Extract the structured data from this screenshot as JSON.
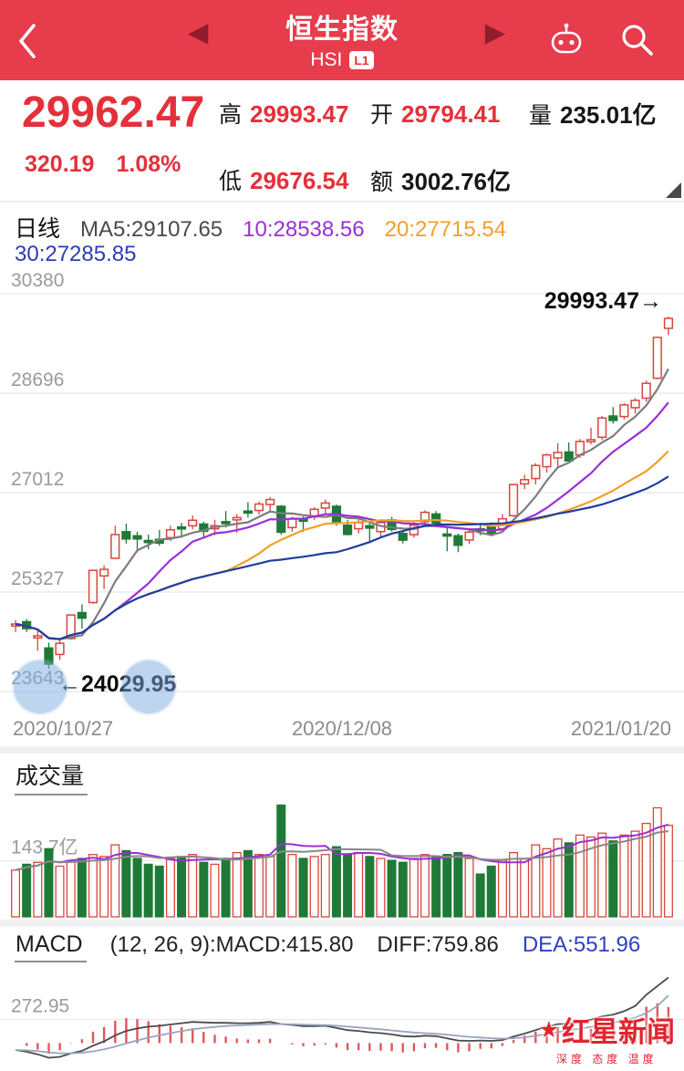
{
  "header": {
    "title": "恒生指数",
    "subtitle": "HSI",
    "badge": "L1",
    "prev_icon": "◀",
    "next_icon": "▶"
  },
  "quote": {
    "price": "29962.47",
    "change": "320.19",
    "change_pct": "1.08%",
    "stats": [
      {
        "label": "高",
        "value": "29993.47"
      },
      {
        "label": "开",
        "value": "29794.41"
      },
      {
        "label": "量",
        "value": "235.01亿"
      },
      {
        "label": "低",
        "value": "29676.54"
      },
      {
        "label": "额",
        "value": "3002.76亿"
      }
    ]
  },
  "indicators": {
    "period": "日线",
    "ma5": "MA5:29107.65",
    "ma10": "10:28538.56",
    "ma20": "20:27715.54",
    "ma30": "30:27285.85"
  },
  "panels": {
    "volume_title": "成交量",
    "macd_title": "MACD",
    "macd_params": "(12, 26, 9):MACD:415.80",
    "macd_diff": "DIFF:759.86",
    "macd_dea": "DEA:551.96"
  },
  "watermark": {
    "star": "★",
    "name": "红星新闻",
    "slogan": "深度 态度 温度"
  },
  "colors": {
    "header_red": "#e63c4c",
    "price_red": "#e5303a",
    "up": "#d8453e",
    "down": "#1e7a36",
    "ma5": "#7d7d7d",
    "ma10": "#9b2fd6",
    "ma20": "#f0a128",
    "ma30": "#1f3da0",
    "vol_ma5": "#9b2fd6",
    "vol_ma10": "#888888",
    "macd_hist": "#e0575c",
    "macd_diff_line": "#4a4a4a",
    "macd_dea_line": "#9aa5bd",
    "dea_blue": "#3040c0",
    "grid": "#ebebee",
    "axis_text": "#9a9a9f"
  },
  "chart_data": {
    "type": "candlestick",
    "title": "恒生指数 HSI 日线",
    "y_ticks": [
      30380,
      28696,
      27012,
      25327,
      23643
    ],
    "x_tick_labels": [
      "2020/10/27",
      "2020/12/08",
      "2021/01/20"
    ],
    "annotations": {
      "max_label": "29993.47→",
      "min_label": "←24029.95"
    },
    "candles": [
      [
        24784,
        24855,
        24651,
        24787
      ],
      [
        24825,
        24870,
        24650,
        24708
      ],
      [
        24550,
        24701,
        24330,
        24586
      ],
      [
        24380,
        24470,
        24029.95,
        24107
      ],
      [
        24270,
        24530,
        24180,
        24460
      ],
      [
        24540,
        24950,
        24520,
        24939
      ],
      [
        24980,
        25120,
        24708,
        24886
      ],
      [
        25150,
        25700,
        25130,
        25695
      ],
      [
        25600,
        25780,
        25380,
        25712
      ],
      [
        25900,
        26450,
        25890,
        26301
      ],
      [
        26350,
        26490,
        26150,
        26226
      ],
      [
        26280,
        26350,
        26000,
        26226
      ],
      [
        26200,
        26300,
        26050,
        26169
      ],
      [
        26220,
        26380,
        26110,
        26156
      ],
      [
        26250,
        26452,
        26190,
        26381
      ],
      [
        26430,
        26500,
        26250,
        26415
      ],
      [
        26450,
        26625,
        26390,
        26544
      ],
      [
        26480,
        26520,
        26250,
        26356
      ],
      [
        26400,
        26551,
        26290,
        26451
      ],
      [
        26520,
        26700,
        26420,
        26486
      ],
      [
        26550,
        26650,
        26330,
        26588
      ],
      [
        26700,
        26850,
        26590,
        26669
      ],
      [
        26710,
        26860,
        26640,
        26819
      ],
      [
        26810,
        26934,
        26700,
        26894
      ],
      [
        26780,
        26800,
        26295,
        26341
      ],
      [
        26420,
        26600,
        26350,
        26567
      ],
      [
        26560,
        26610,
        26350,
        26532
      ],
      [
        26600,
        26765,
        26550,
        26728
      ],
      [
        26750,
        26894,
        26650,
        26835
      ],
      [
        26780,
        26810,
        26450,
        26506
      ],
      [
        26460,
        26550,
        26286,
        26304
      ],
      [
        26400,
        26570,
        26320,
        26502
      ],
      [
        26450,
        26500,
        26190,
        26410
      ],
      [
        26350,
        26560,
        26250,
        26505
      ],
      [
        26550,
        26600,
        26350,
        26389
      ],
      [
        26320,
        26360,
        26150,
        26207
      ],
      [
        26300,
        26510,
        26250,
        26460
      ],
      [
        26520,
        26712,
        26460,
        26678
      ],
      [
        26650,
        26700,
        26430,
        26498
      ],
      [
        26310,
        26420,
        26016,
        26306
      ],
      [
        26280,
        26320,
        26002,
        26119
      ],
      [
        26210,
        26400,
        26140,
        26343
      ],
      [
        26400,
        26500,
        26290,
        26386
      ],
      [
        26450,
        26510,
        26270,
        26314
      ],
      [
        26400,
        26650,
        26340,
        26568
      ],
      [
        26620,
        27160,
        26600,
        27147
      ],
      [
        27160,
        27315,
        27070,
        27231
      ],
      [
        27250,
        27510,
        27150,
        27472
      ],
      [
        27450,
        27675,
        27350,
        27649
      ],
      [
        27600,
        27850,
        27420,
        27692
      ],
      [
        27700,
        27860,
        27510,
        27548
      ],
      [
        27650,
        27920,
        27600,
        27878
      ],
      [
        27900,
        28110,
        27830,
        27908
      ],
      [
        27950,
        28310,
        27900,
        28276
      ],
      [
        28310,
        28460,
        28180,
        28235
      ],
      [
        28300,
        28530,
        28250,
        28496
      ],
      [
        28450,
        28613,
        28350,
        28573
      ],
      [
        28610,
        28910,
        28550,
        28862
      ],
      [
        28950,
        29650,
        28930,
        29642
      ],
      [
        29794.41,
        29993.47,
        29676.54,
        29962.47
      ]
    ],
    "ma_periods": [
      5,
      10,
      20,
      30
    ],
    "volume": {
      "values": [
        120,
        135,
        140,
        175,
        130,
        145,
        150,
        160,
        155,
        185,
        170,
        150,
        135,
        130,
        150,
        155,
        160,
        140,
        135,
        150,
        165,
        170,
        160,
        155,
        287,
        160,
        150,
        155,
        160,
        180,
        160,
        165,
        155,
        150,
        145,
        140,
        150,
        160,
        155,
        160,
        165,
        150,
        110,
        130,
        145,
        165,
        150,
        185,
        175,
        200,
        190,
        210,
        205,
        215,
        195,
        210,
        220,
        240,
        280,
        235.01
      ],
      "unit": "亿",
      "gridline": 143.7,
      "gridline_label": "143.7亿",
      "scale_max": 300
    },
    "macd": {
      "diff": [
        -80,
        -100,
        -130,
        -170,
        -160,
        -120,
        -90,
        -30,
        20,
        90,
        140,
        170,
        190,
        200,
        215,
        230,
        245,
        240,
        235,
        235,
        230,
        230,
        235,
        245,
        220,
        210,
        195,
        195,
        200,
        175,
        150,
        140,
        125,
        115,
        100,
        80,
        75,
        85,
        80,
        55,
        30,
        25,
        30,
        25,
        35,
        75,
        110,
        150,
        190,
        220,
        225,
        250,
        270,
        310,
        330,
        370,
        430,
        560,
        660,
        759.86
      ],
      "dea": [
        -80,
        -84,
        -93,
        -108,
        -118,
        -118,
        -112,
        -96,
        -73,
        -40,
        -4,
        31,
        63,
        90,
        115,
        138,
        159,
        175,
        187,
        197,
        204,
        209,
        214,
        220,
        220,
        218,
        213,
        210,
        208,
        201,
        191,
        181,
        170,
        159,
        147,
        134,
        122,
        115,
        108,
        97,
        84,
        72,
        64,
        56,
        52,
        56,
        67,
        84,
        105,
        128,
        147,
        168,
        188,
        212,
        236,
        263,
        296,
        349,
        430,
        551.96
      ],
      "gridline": 272.95,
      "gridline_label": "272.95",
      "scale": [
        -260,
        860
      ],
      "last": {
        "macd": 415.8,
        "diff": 759.86,
        "dea": 551.96
      }
    }
  }
}
